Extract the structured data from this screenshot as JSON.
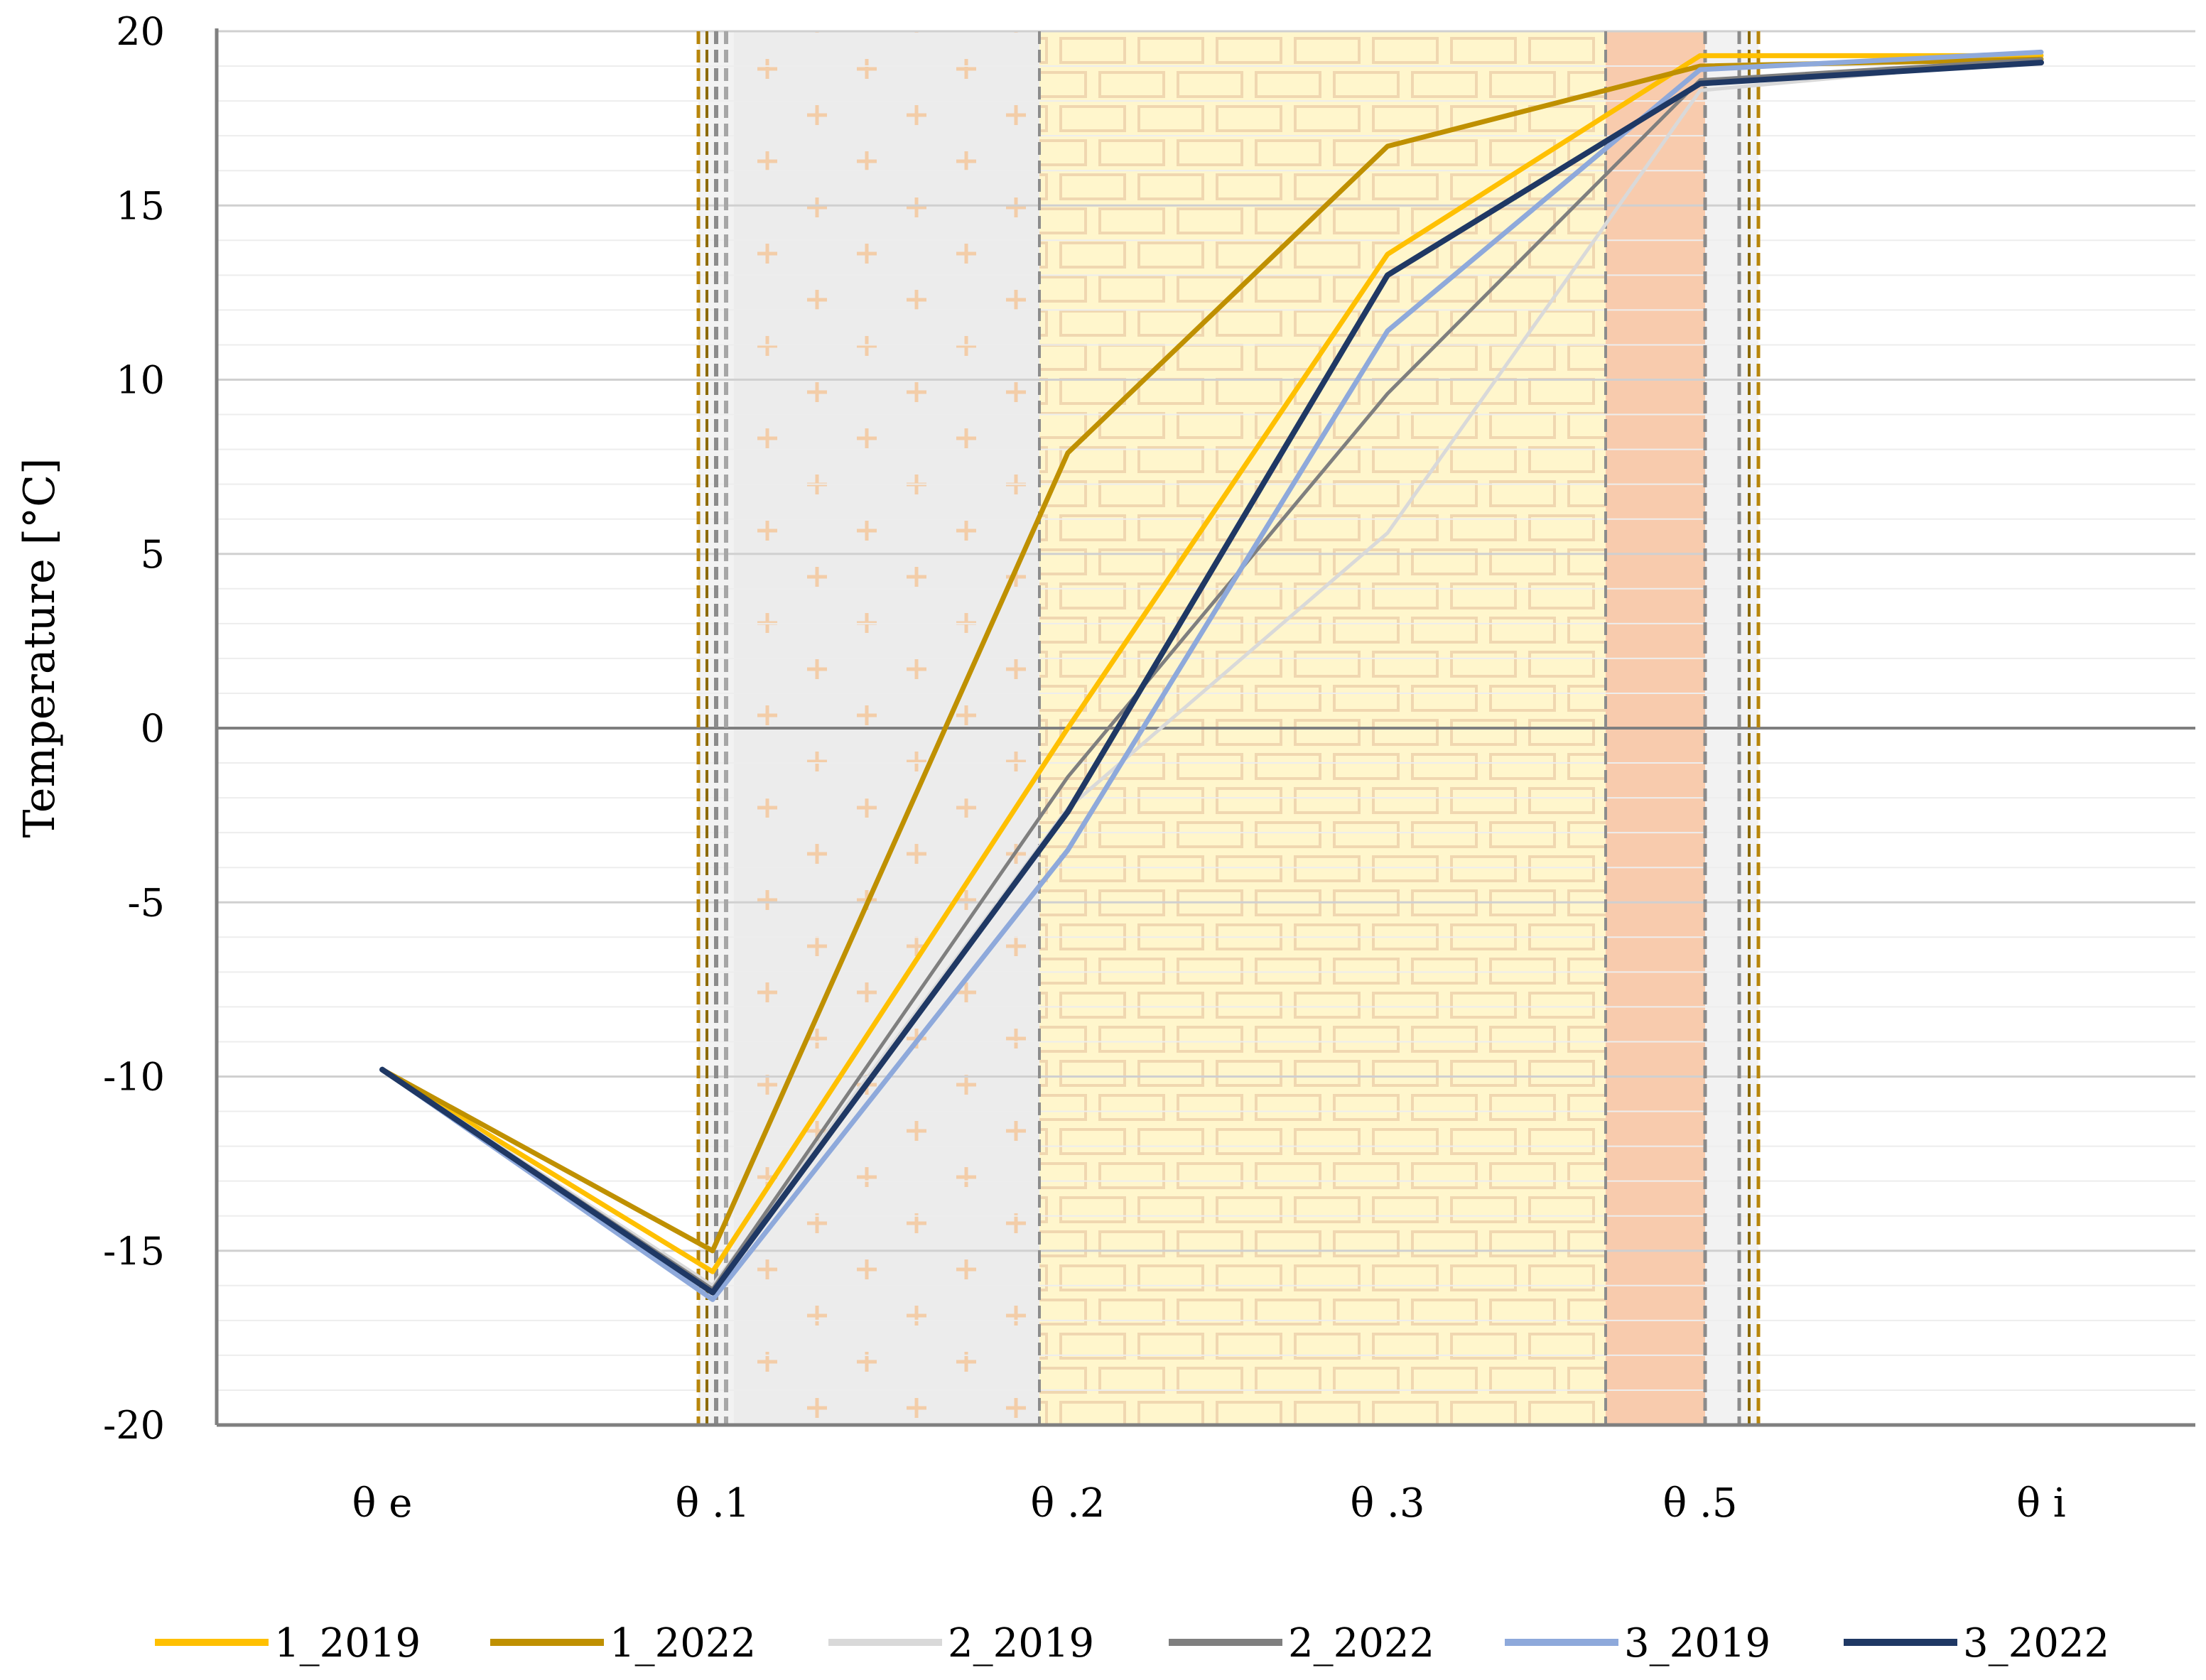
{
  "chart_data": {
    "type": "line",
    "title": "",
    "xlabel": "",
    "ylabel": "Temperature [°C]",
    "ylim": [
      -20,
      20
    ],
    "yticks": [
      20,
      15,
      10,
      5,
      0,
      -5,
      -10,
      -15,
      -20
    ],
    "ytick_labels": [
      "20",
      "15",
      "10",
      "5",
      "0",
      "-5",
      "-10",
      "-15",
      "-20"
    ],
    "categories": [
      "θ e",
      "θ .1",
      "θ .2",
      "θ .3",
      "θ .5",
      "θ i"
    ],
    "grid": true,
    "legend_position": "bottom",
    "series": [
      {
        "name": "1_2019",
        "color": "#FFC000",
        "width": 7,
        "values": [
          -9.8,
          -15.6,
          0.0,
          13.6,
          19.3,
          19.3
        ]
      },
      {
        "name": "1_2022",
        "color": "#BF9000",
        "width": 7,
        "values": [
          -9.8,
          -15.0,
          7.9,
          16.7,
          19.0,
          19.2
        ]
      },
      {
        "name": "2_2019",
        "color": "#D9D9D9",
        "width": 5,
        "values": [
          -9.8,
          -16.0,
          -2.3,
          5.6,
          18.3,
          19.2
        ]
      },
      {
        "name": "2_2022",
        "color": "#7F7F7F",
        "width": 5,
        "values": [
          -9.8,
          -16.1,
          -1.4,
          9.6,
          18.6,
          19.2
        ]
      },
      {
        "name": "3_2019",
        "color": "#8EA9DB",
        "width": 7,
        "values": [
          -9.8,
          -16.4,
          -3.5,
          11.4,
          18.9,
          19.4
        ]
      },
      {
        "name": "3_2022",
        "color": "#1F3864",
        "width": 8,
        "values": [
          -9.8,
          -16.2,
          -2.4,
          13.0,
          18.5,
          19.1
        ]
      }
    ]
  }
}
